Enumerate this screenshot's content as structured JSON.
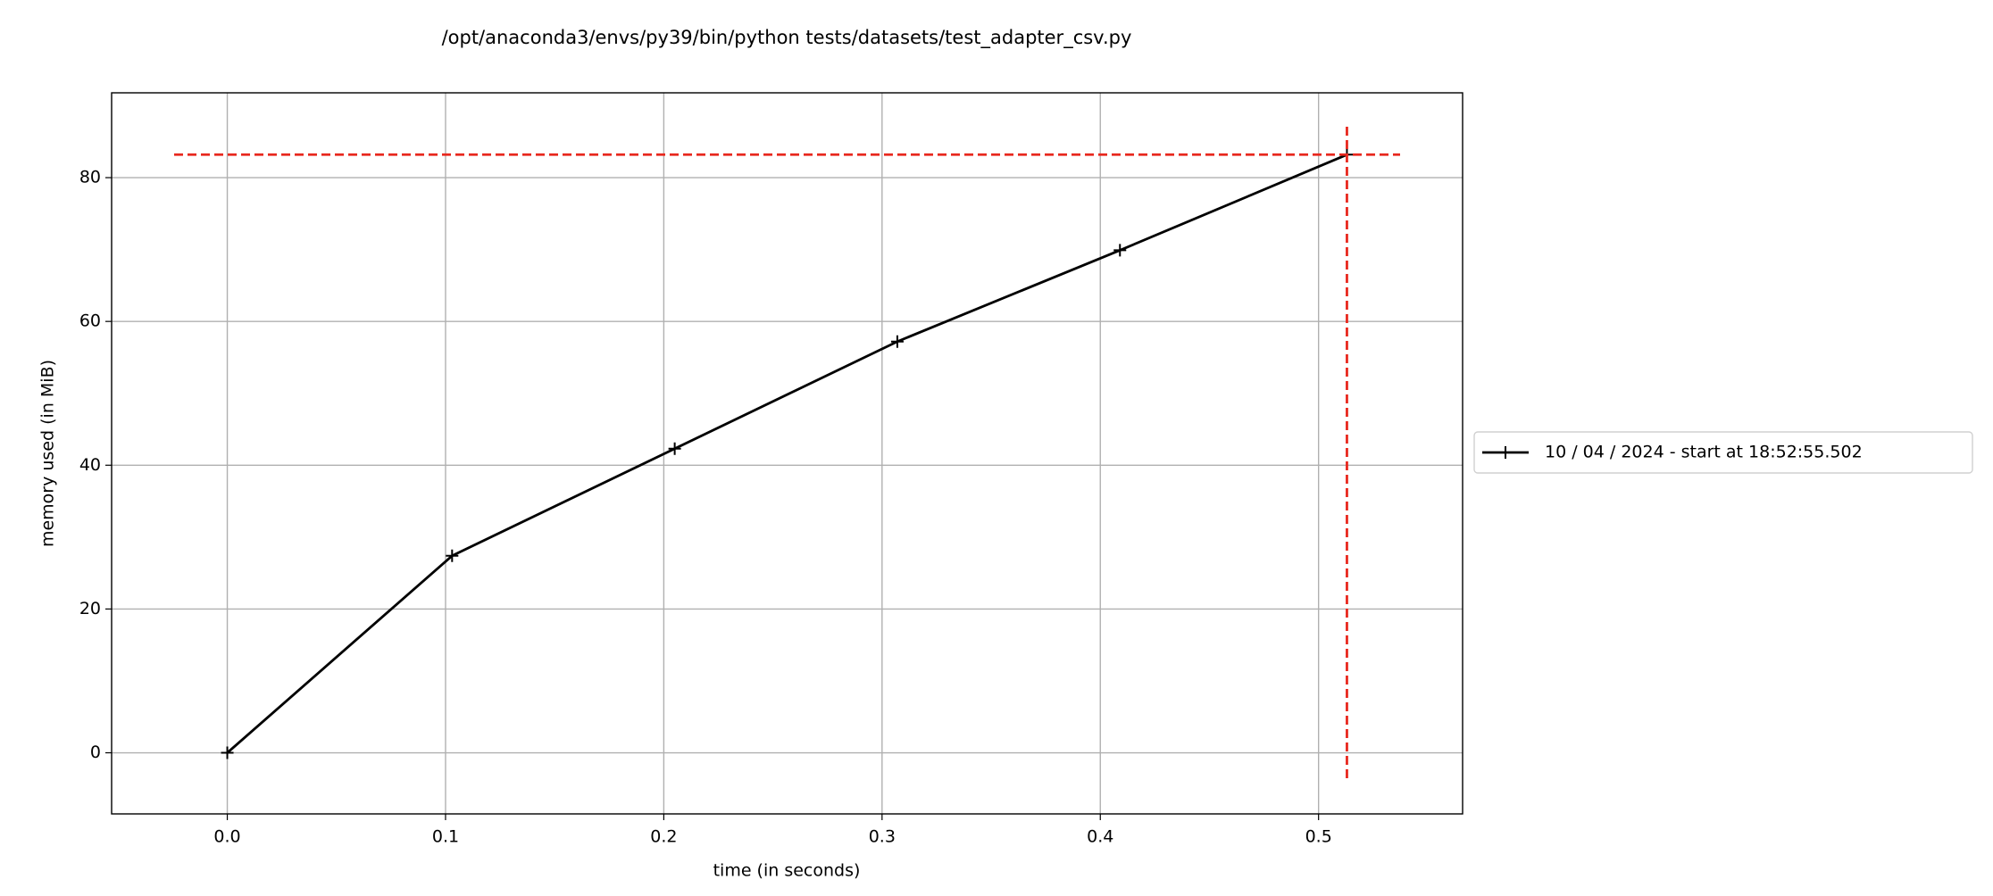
{
  "chart_data": {
    "type": "line",
    "title": "/opt/anaconda3/envs/py39/bin/python tests/datasets/test_adapter_csv.py",
    "x_label": "time (in seconds)",
    "y_label": "memory used (in MiB)",
    "x": [
      0,
      0.103,
      0.205,
      0.307,
      0.409,
      0.513
    ],
    "series": [
      {
        "name": "10 / 04 / 2024 - start at 18:52:55.502",
        "color": "#000000",
        "values": [
          0,
          27.4,
          42.3,
          57.2,
          69.9,
          83.2
        ]
      }
    ],
    "max_memory": 83.2,
    "max_time": 0.513,
    "max_color": "#e8281e",
    "xlim": [
      -0.053,
      0.566
    ],
    "ylim": [
      -8.5,
      91.8
    ],
    "xticks": [
      {
        "value": 0,
        "label": "0.0"
      },
      0.1,
      0.2,
      0.3,
      0.4,
      0.5
    ],
    "yticks": [
      0,
      20,
      40,
      60,
      80
    ],
    "grid": true,
    "legend": "outside right"
  }
}
